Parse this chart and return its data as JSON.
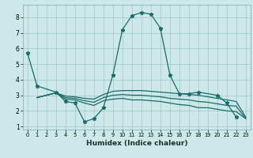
{
  "xlabel": "Humidex (Indice chaleur)",
  "bg_color": "#cce8e8",
  "grid_color": "#aacccc",
  "line_color": "#1a6b6b",
  "xlim": [
    -0.5,
    23.5
  ],
  "ylim": [
    0.8,
    8.8
  ],
  "xticks": [
    0,
    1,
    2,
    3,
    4,
    5,
    6,
    7,
    8,
    9,
    10,
    11,
    12,
    13,
    14,
    15,
    16,
    17,
    18,
    19,
    20,
    21,
    22,
    23
  ],
  "yticks": [
    1,
    2,
    3,
    4,
    5,
    6,
    7,
    8
  ],
  "series1_x": [
    0,
    1,
    3,
    4,
    5,
    6,
    7,
    8,
    9,
    10,
    11,
    12,
    13,
    14,
    15,
    16,
    17,
    18,
    20,
    21,
    22
  ],
  "series1_y": [
    5.7,
    3.6,
    3.2,
    2.6,
    2.5,
    1.3,
    1.5,
    2.2,
    4.3,
    7.2,
    8.1,
    8.3,
    8.2,
    7.3,
    4.3,
    3.1,
    3.1,
    3.2,
    3.0,
    2.5,
    1.6
  ],
  "series2_x": [
    1,
    3,
    4,
    5,
    6,
    7,
    8,
    9,
    10,
    11,
    12,
    13,
    14,
    15,
    16,
    17,
    18,
    19,
    20,
    21,
    22,
    23
  ],
  "series2_y": [
    2.85,
    3.15,
    2.95,
    2.9,
    2.8,
    2.75,
    3.05,
    3.25,
    3.3,
    3.3,
    3.3,
    3.25,
    3.2,
    3.15,
    3.1,
    3.05,
    3.0,
    2.9,
    2.8,
    2.7,
    2.6,
    1.6
  ],
  "series3_x": [
    1,
    3,
    4,
    5,
    6,
    7,
    8,
    9,
    10,
    11,
    12,
    13,
    14,
    15,
    16,
    17,
    18,
    19,
    20,
    21,
    22,
    23
  ],
  "series3_y": [
    2.85,
    3.15,
    2.85,
    2.8,
    2.65,
    2.55,
    2.85,
    3.0,
    3.05,
    3.0,
    3.0,
    2.95,
    2.9,
    2.8,
    2.75,
    2.7,
    2.6,
    2.55,
    2.45,
    2.35,
    2.3,
    1.5
  ],
  "series4_x": [
    1,
    3,
    4,
    5,
    6,
    7,
    8,
    9,
    10,
    11,
    12,
    13,
    14,
    15,
    16,
    17,
    18,
    19,
    20,
    21,
    22,
    23
  ],
  "series4_y": [
    2.85,
    3.15,
    2.75,
    2.7,
    2.5,
    2.35,
    2.65,
    2.75,
    2.8,
    2.7,
    2.7,
    2.65,
    2.6,
    2.5,
    2.4,
    2.35,
    2.2,
    2.2,
    2.1,
    2.0,
    1.95,
    1.5
  ]
}
